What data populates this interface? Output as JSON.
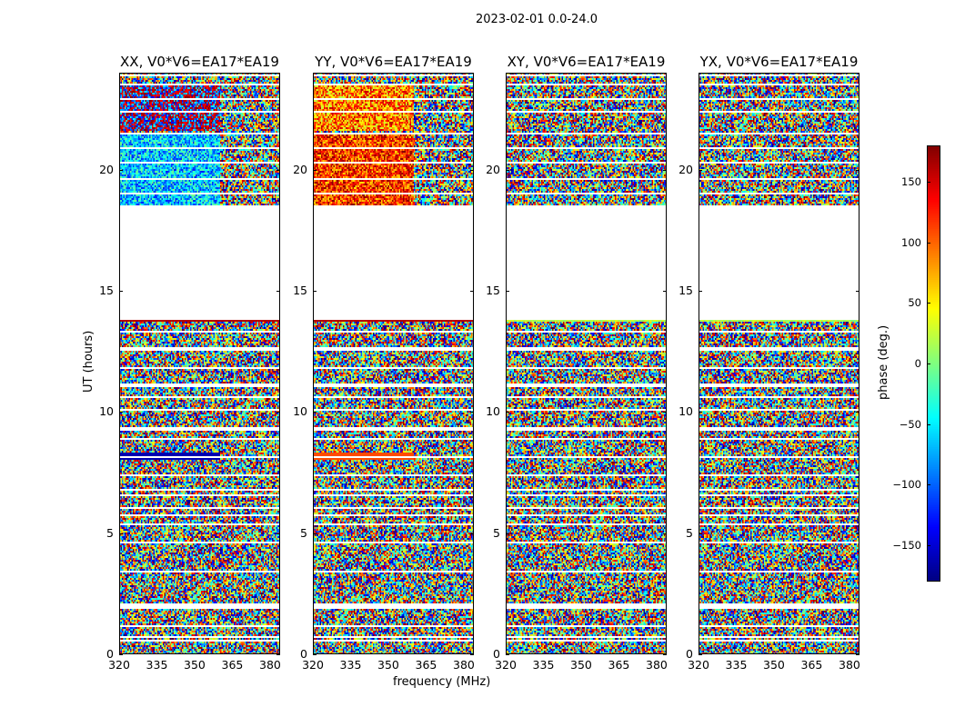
{
  "chart_data": {
    "type": "heatmap",
    "suptitle": "2023-02-01 0.0-24.0",
    "panels": [
      {
        "title": "XX, V0*V6=EA17*EA19",
        "pol": "XX"
      },
      {
        "title": "YY, V0*V6=EA17*EA19",
        "pol": "YY"
      },
      {
        "title": "XY, V0*V6=EA17*EA19",
        "pol": "XY"
      },
      {
        "title": "YX, V0*V6=EA17*EA19",
        "pol": "YX"
      }
    ],
    "xlabel": "frequency (MHz)",
    "ylabel": "UT (hours)",
    "xlim": [
      320,
      384
    ],
    "ylim": [
      0,
      24
    ],
    "xticks": [
      "320",
      "335",
      "350",
      "365",
      "380"
    ],
    "xtick_values": [
      320,
      335,
      350,
      365,
      380
    ],
    "yticks": [
      "0",
      "5",
      "10",
      "15",
      "20"
    ],
    "ytick_values": [
      0,
      5,
      10,
      15,
      20
    ],
    "data_gaps_hours": [
      [
        13.8,
        18.5
      ]
    ],
    "colorbar": {
      "label": "phase (deg.)",
      "range": [
        -180,
        180
      ],
      "ticks": [
        "150",
        "100",
        "50",
        "0",
        "−50",
        "−100",
        "−150"
      ],
      "tick_values": [
        150,
        100,
        50,
        0,
        -50,
        -100,
        -150
      ],
      "colormap": "jet"
    },
    "colors": {
      "frame": "#000000",
      "background": "#ffffff"
    }
  }
}
